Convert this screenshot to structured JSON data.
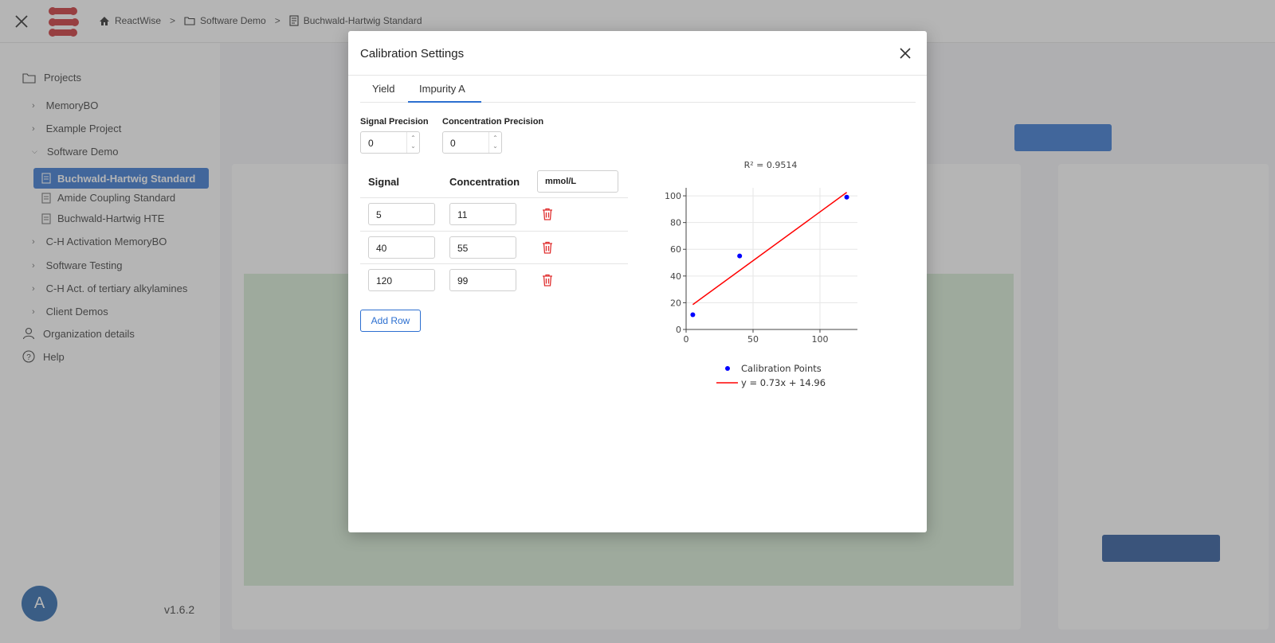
{
  "breadcrumb": {
    "items": [
      "ReactWise",
      "Software Demo",
      "Buchwald-Hartwig Standard"
    ],
    "separator": ">"
  },
  "sidebar": {
    "projects_label": "Projects",
    "items": [
      {
        "label": "MemoryBO"
      },
      {
        "label": "Example Project"
      },
      {
        "label": "Software Demo"
      },
      {
        "label": "Buchwald-Hartwig Standard"
      },
      {
        "label": "Amide Coupling Standard"
      },
      {
        "label": "Buchwald-Hartwig HTE"
      },
      {
        "label": "C-H Activation MemoryBO"
      },
      {
        "label": "Software Testing"
      },
      {
        "label": "C-H Act. of tertiary alkylamines"
      },
      {
        "label": "Client Demos"
      }
    ],
    "org_label": "Organization details",
    "help_label": "Help",
    "avatar_letter": "A",
    "version": "v1.6.2"
  },
  "modal": {
    "title": "Calibration Settings",
    "tabs": [
      "Yield",
      "Impurity A"
    ],
    "active_tab": "Impurity A",
    "signal_precision_label": "Signal Precision",
    "signal_precision_value": "0",
    "concentration_precision_label": "Concentration Precision",
    "concentration_precision_value": "0",
    "table": {
      "signal_header": "Signal",
      "concentration_header": "Concentration",
      "unit": "mmol/L",
      "rows": [
        {
          "signal": "5",
          "concentration": "11"
        },
        {
          "signal": "40",
          "concentration": "55"
        },
        {
          "signal": "120",
          "concentration": "99"
        }
      ]
    },
    "add_row_label": "Add Row"
  },
  "chart_data": {
    "type": "scatter",
    "title": "R² = 0.9514",
    "points": {
      "name": "Calibration Points",
      "x": [
        5,
        40,
        120
      ],
      "y": [
        11,
        55,
        99
      ],
      "color": "#0000ff"
    },
    "fit": {
      "name": "y = 0.73x + 14.96",
      "slope": 0.73,
      "intercept": 14.96,
      "color": "#ff0000",
      "x_range": [
        5,
        120
      ]
    },
    "xlim": [
      0,
      128
    ],
    "ylim": [
      0,
      106
    ],
    "xticks": [
      0,
      50,
      100
    ],
    "yticks": [
      0,
      20,
      40,
      60,
      80,
      100
    ],
    "grid": true,
    "legend_position": "bottom"
  },
  "colors": {
    "accent": "#2c6fd0",
    "danger": "#e03030"
  }
}
